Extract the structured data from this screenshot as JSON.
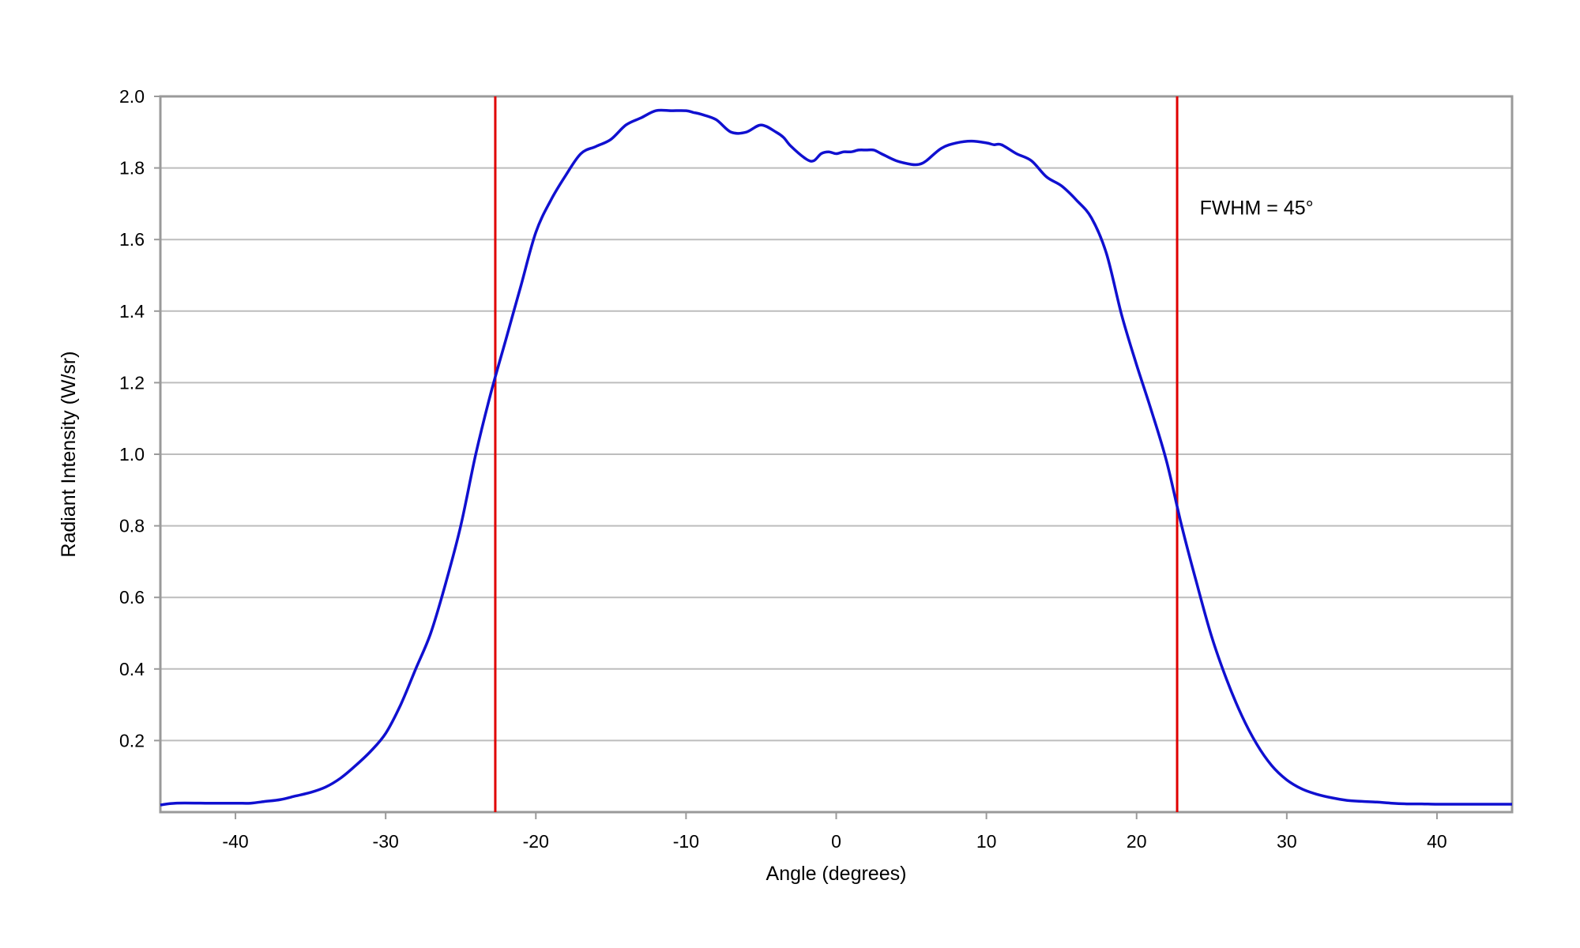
{
  "chart_data": {
    "type": "line",
    "title": "",
    "xlabel": "Angle (degrees)",
    "ylabel": "Radiant Intensity (W/sr)",
    "xlim": [
      -45,
      45
    ],
    "ylim": [
      0,
      2.0
    ],
    "x_ticks": [
      -40,
      -30,
      -20,
      -10,
      0,
      10,
      20,
      30,
      40
    ],
    "x_tick_labels": [
      "-40",
      "-30",
      "-20",
      "-10",
      "0",
      "10",
      "20",
      "30",
      "40"
    ],
    "y_ticks": [
      0.2,
      0.4,
      0.6,
      0.8,
      1.0,
      1.2,
      1.4,
      1.6,
      1.8,
      2.0
    ],
    "y_tick_labels": [
      "0.2",
      "0.4",
      "0.6",
      "0.8",
      "1.0",
      "1.2",
      "1.4",
      "1.6",
      "1.8",
      "2.0"
    ],
    "grid": "horizontal",
    "legend": "none",
    "series": [
      {
        "color": "#1010d0",
        "x": [
          -45,
          -44,
          -42,
          -40,
          -39,
          -38,
          -37,
          -36,
          -35,
          -34,
          -33,
          -32,
          -31,
          -30,
          -29,
          -28,
          -27,
          -26,
          -25,
          -24,
          -23,
          -22,
          -21,
          -20,
          -19,
          -18,
          -17,
          -16,
          -15,
          -14,
          -13,
          -12,
          -11,
          -10,
          -9.5,
          -9,
          -8,
          -7,
          -6,
          -5,
          -4,
          -3.5,
          -3,
          -2,
          -1.5,
          -1,
          -0.5,
          0,
          0.5,
          1,
          1.5,
          2,
          2.5,
          3,
          4,
          5,
          5.5,
          6,
          7,
          8,
          9,
          10,
          10.5,
          11,
          12,
          13,
          14,
          15,
          16,
          17,
          18,
          19,
          20,
          21,
          22,
          23,
          24,
          25,
          26,
          27,
          28,
          29,
          30,
          31,
          32,
          33,
          34,
          35,
          36,
          37,
          38,
          39,
          40,
          41,
          42,
          43,
          44,
          45
        ],
        "y": [
          0.02,
          0.025,
          0.025,
          0.025,
          0.025,
          0.03,
          0.035,
          0.045,
          0.055,
          0.07,
          0.095,
          0.13,
          0.17,
          0.22,
          0.3,
          0.4,
          0.5,
          0.64,
          0.8,
          1.0,
          1.17,
          1.32,
          1.47,
          1.62,
          1.71,
          1.78,
          1.84,
          1.86,
          1.88,
          1.92,
          1.94,
          1.96,
          1.96,
          1.96,
          1.955,
          1.95,
          1.935,
          1.9,
          1.9,
          1.92,
          1.9,
          1.885,
          1.86,
          1.825,
          1.82,
          1.84,
          1.845,
          1.84,
          1.845,
          1.845,
          1.85,
          1.85,
          1.85,
          1.84,
          1.82,
          1.81,
          1.81,
          1.82,
          1.855,
          1.87,
          1.875,
          1.87,
          1.865,
          1.865,
          1.84,
          1.82,
          1.775,
          1.75,
          1.71,
          1.66,
          1.56,
          1.39,
          1.25,
          1.12,
          0.98,
          0.8,
          0.64,
          0.49,
          0.37,
          0.27,
          0.19,
          0.13,
          0.09,
          0.065,
          0.05,
          0.04,
          0.033,
          0.03,
          0.028,
          0.025,
          0.023,
          0.023,
          0.022,
          0.022,
          0.022,
          0.022,
          0.022,
          0.022
        ]
      }
    ],
    "vertical_lines": [
      {
        "x": -22.7,
        "color": "#e00000"
      },
      {
        "x": 22.7,
        "color": "#e00000"
      }
    ],
    "annotation": {
      "text": "FWHM = 45°",
      "x": 24.2,
      "y": 1.67
    }
  }
}
